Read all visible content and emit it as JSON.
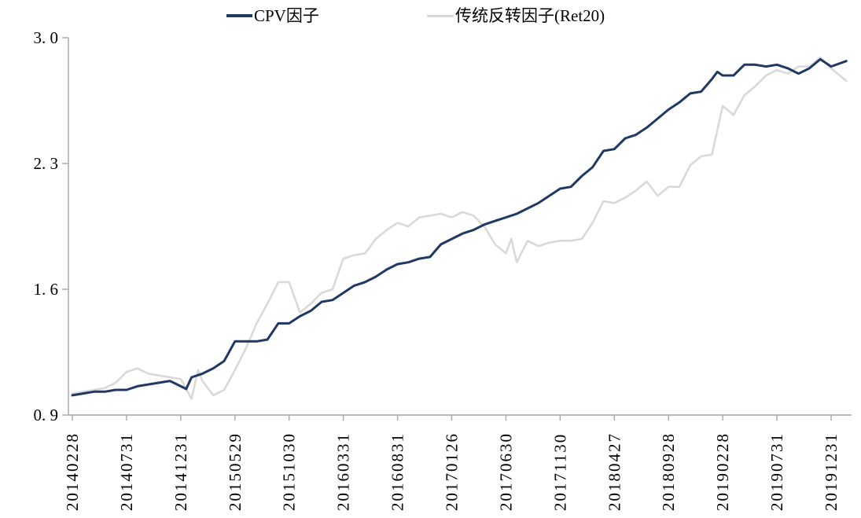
{
  "legend": [
    {
      "label": "CPV因子",
      "color": "#1f3864"
    },
    {
      "label": "传统反转因子(Ret20)",
      "color": "#d9d9d9"
    }
  ],
  "y_axis": {
    "tick_labels": [
      "3. 0",
      "2. 3",
      "1. 6",
      "0. 9"
    ],
    "tick_values": [
      3.0,
      2.3,
      1.6,
      0.9
    ],
    "min": 0.9,
    "max": 3.0
  },
  "x_axis": {
    "tick_labels": [
      "20140228",
      "20140731",
      "20141231",
      "20150529",
      "20151030",
      "20160331",
      "20160831",
      "20170126",
      "20170630",
      "20171130",
      "20180427",
      "20180928",
      "20190228",
      "20190731",
      "20191231"
    ],
    "tick_month_indices": [
      0,
      5,
      10,
      15,
      20,
      25,
      30,
      35,
      40,
      45,
      50,
      55,
      60,
      65,
      70
    ]
  },
  "chart_data": {
    "type": "line",
    "title": "",
    "xlabel": "",
    "ylabel": "",
    "x_unit": "month index, 0 = 2014-02 (dates are month-end trading days), monthly through 2019-12 plus trailing point",
    "ylim": [
      0.9,
      3.0
    ],
    "xlim": [
      0,
      71.8
    ],
    "grid": false,
    "legend_position": "top",
    "axis_color": "#a6a6a6",
    "series": [
      {
        "name": "传统反转因子(Ret20)",
        "color": "#d9d9d9",
        "points": [
          [
            0,
            1.02
          ],
          [
            1,
            1.03
          ],
          [
            2,
            1.04
          ],
          [
            3,
            1.05
          ],
          [
            4,
            1.08
          ],
          [
            5,
            1.14
          ],
          [
            6,
            1.16
          ],
          [
            7,
            1.13
          ],
          [
            8,
            1.12
          ],
          [
            9,
            1.11
          ],
          [
            10,
            1.1
          ],
          [
            11,
            0.99
          ],
          [
            11.6,
            1.15
          ],
          [
            12,
            1.09
          ],
          [
            13,
            1.01
          ],
          [
            14,
            1.04
          ],
          [
            15,
            1.15
          ],
          [
            16,
            1.27
          ],
          [
            17,
            1.41
          ],
          [
            18,
            1.52
          ],
          [
            19,
            1.64
          ],
          [
            20,
            1.64
          ],
          [
            21,
            1.47
          ],
          [
            22,
            1.52
          ],
          [
            23,
            1.58
          ],
          [
            24,
            1.6
          ],
          [
            25,
            1.77
          ],
          [
            26,
            1.79
          ],
          [
            27,
            1.8
          ],
          [
            28,
            1.88
          ],
          [
            29,
            1.93
          ],
          [
            30,
            1.97
          ],
          [
            31,
            1.95
          ],
          [
            32,
            2.0
          ],
          [
            33,
            2.01
          ],
          [
            34,
            2.02
          ],
          [
            35,
            2.0
          ],
          [
            36,
            2.03
          ],
          [
            37,
            2.01
          ],
          [
            38,
            1.95
          ],
          [
            39,
            1.85
          ],
          [
            40,
            1.8
          ],
          [
            40.5,
            1.88
          ],
          [
            41,
            1.75
          ],
          [
            42,
            1.87
          ],
          [
            43,
            1.84
          ],
          [
            44,
            1.86
          ],
          [
            45,
            1.87
          ],
          [
            46,
            1.87
          ],
          [
            47,
            1.88
          ],
          [
            48,
            1.97
          ],
          [
            49,
            2.09
          ],
          [
            50,
            2.08
          ],
          [
            51,
            2.11
          ],
          [
            52,
            2.15
          ],
          [
            53,
            2.2
          ],
          [
            54,
            2.12
          ],
          [
            55,
            2.17
          ],
          [
            56,
            2.17
          ],
          [
            57,
            2.29
          ],
          [
            58,
            2.34
          ],
          [
            59,
            2.35
          ],
          [
            60,
            2.62
          ],
          [
            61,
            2.57
          ],
          [
            62,
            2.68
          ],
          [
            63,
            2.73
          ],
          [
            64,
            2.79
          ],
          [
            65,
            2.82
          ],
          [
            66,
            2.8
          ],
          [
            67,
            2.84
          ],
          [
            68,
            2.84
          ],
          [
            69,
            2.89
          ],
          [
            70,
            2.83
          ],
          [
            71.4,
            2.76
          ]
        ]
      },
      {
        "name": "CPV因子",
        "color": "#1f3864",
        "points": [
          [
            0,
            1.01
          ],
          [
            1,
            1.02
          ],
          [
            2,
            1.03
          ],
          [
            3,
            1.03
          ],
          [
            4,
            1.04
          ],
          [
            5,
            1.04
          ],
          [
            6,
            1.06
          ],
          [
            7,
            1.07
          ],
          [
            8,
            1.08
          ],
          [
            9,
            1.09
          ],
          [
            10,
            1.06
          ],
          [
            10.5,
            1.045
          ],
          [
            11,
            1.11
          ],
          [
            12,
            1.13
          ],
          [
            13,
            1.16
          ],
          [
            14,
            1.2
          ],
          [
            15,
            1.31
          ],
          [
            16,
            1.31
          ],
          [
            17,
            1.31
          ],
          [
            18,
            1.32
          ],
          [
            19,
            1.41
          ],
          [
            20,
            1.41
          ],
          [
            21,
            1.45
          ],
          [
            22,
            1.48
          ],
          [
            23,
            1.53
          ],
          [
            24,
            1.54
          ],
          [
            25,
            1.58
          ],
          [
            26,
            1.62
          ],
          [
            27,
            1.64
          ],
          [
            28,
            1.67
          ],
          [
            29,
            1.71
          ],
          [
            30,
            1.74
          ],
          [
            31,
            1.75
          ],
          [
            32,
            1.77
          ],
          [
            33,
            1.78
          ],
          [
            34,
            1.85
          ],
          [
            35,
            1.88
          ],
          [
            36,
            1.91
          ],
          [
            37,
            1.93
          ],
          [
            38,
            1.96
          ],
          [
            39,
            1.98
          ],
          [
            40,
            2.0
          ],
          [
            41,
            2.02
          ],
          [
            42,
            2.05
          ],
          [
            43,
            2.08
          ],
          [
            44,
            2.12
          ],
          [
            45,
            2.16
          ],
          [
            46,
            2.17
          ],
          [
            47,
            2.23
          ],
          [
            48,
            2.28
          ],
          [
            49,
            2.37
          ],
          [
            50,
            2.38
          ],
          [
            51,
            2.44
          ],
          [
            52,
            2.46
          ],
          [
            53,
            2.5
          ],
          [
            54,
            2.55
          ],
          [
            55,
            2.6
          ],
          [
            56,
            2.64
          ],
          [
            57,
            2.69
          ],
          [
            58,
            2.7
          ],
          [
            59,
            2.77
          ],
          [
            59.5,
            2.81
          ],
          [
            60,
            2.79
          ],
          [
            61,
            2.79
          ],
          [
            62,
            2.85
          ],
          [
            63,
            2.85
          ],
          [
            64,
            2.84
          ],
          [
            65,
            2.85
          ],
          [
            66,
            2.83
          ],
          [
            67,
            2.8
          ],
          [
            68,
            2.83
          ],
          [
            69,
            2.88
          ],
          [
            70,
            2.84
          ],
          [
            71.4,
            2.87
          ]
        ]
      }
    ]
  }
}
